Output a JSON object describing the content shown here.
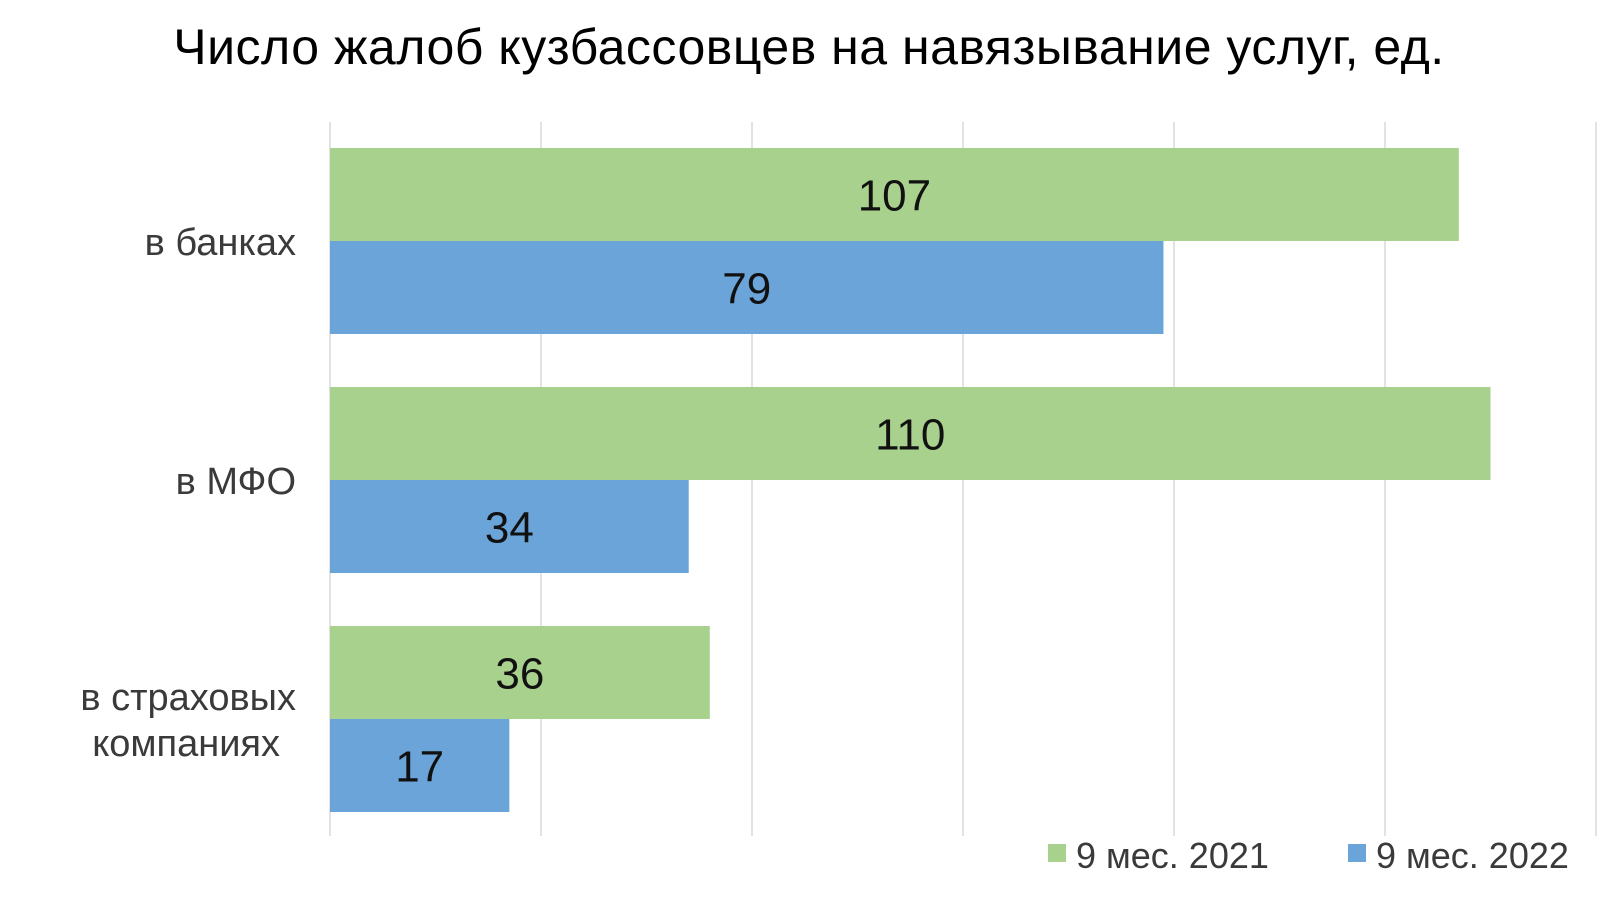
{
  "chart_data": {
    "type": "bar",
    "orientation": "horizontal",
    "title": "Число жалоб кузбассовцев на навязывание услуг, ед.",
    "categories": [
      "в банках",
      "в МФО",
      "в страховых компаниях"
    ],
    "category_lines": [
      [
        "в банках"
      ],
      [
        "в МФО"
      ],
      [
        "в страховых",
        "компаниях"
      ]
    ],
    "series": [
      {
        "name": "9 мес. 2021",
        "color": "#a9d18e",
        "values": [
          107,
          110,
          36
        ]
      },
      {
        "name": "9 мес. 2022",
        "color": "#6aa4d8",
        "values": [
          79,
          34,
          17
        ]
      }
    ],
    "xlim": [
      0,
      120
    ],
    "grid": true,
    "data_labels": true,
    "legend_position": "bottom-right",
    "gridline_color": "#d9d9d9"
  }
}
